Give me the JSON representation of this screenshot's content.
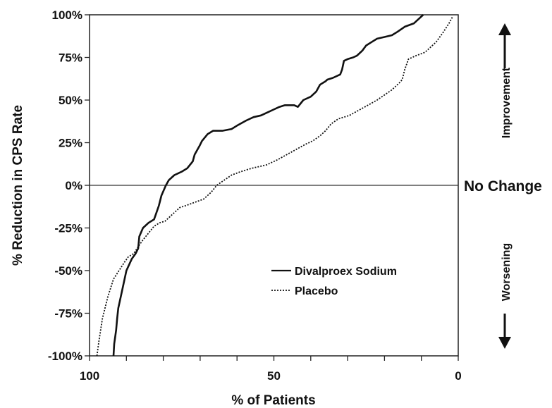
{
  "chart_data": {
    "type": "line",
    "xlabel": "% of Patients",
    "ylabel": "% Reduction in CPS Rate",
    "xlim": [
      100,
      0
    ],
    "ylim": [
      -100,
      100
    ],
    "x_reversed": true,
    "x_ticks": [
      100,
      50,
      0
    ],
    "x_tick_labels": [
      "100",
      "50",
      "0"
    ],
    "y_ticks": [
      -100,
      -75,
      -50,
      -25,
      0,
      25,
      50,
      75,
      100
    ],
    "y_tick_labels": [
      "-100%",
      "-75%",
      "-50%",
      "-25%",
      "0%",
      "25%",
      "50%",
      "75%",
      "100%"
    ],
    "reference_line": {
      "y": 0,
      "label": "No Change"
    },
    "side_labels": {
      "top": "Improvement",
      "bottom": "Worsening"
    },
    "legend_position": "lower-right",
    "series": [
      {
        "name": "Divalproex Sodium",
        "style": "solid",
        "color": "#111111",
        "x": [
          93.5,
          93.3,
          92.8,
          92.5,
          92.2,
          91.8,
          91.0,
          90.0,
          88.5,
          87.5,
          86.8,
          86.5,
          85.5,
          84.0,
          82.5,
          82.0,
          81.2,
          80.5,
          79.3,
          78.5,
          77.0,
          75.0,
          73.5,
          72.0,
          71.5,
          70.2,
          69.5,
          68.0,
          66.5,
          64.0,
          61.5,
          60.0,
          57.5,
          55.5,
          53.5,
          50.5,
          48.5,
          47.0,
          45.5,
          44.5,
          43.5,
          42.0,
          40.0,
          38.5,
          37.5,
          36.0,
          35.5,
          34.0,
          32.0,
          31.5,
          31.0,
          30.0,
          28.5,
          27.5,
          26.0,
          25.0,
          23.5,
          22.0,
          20.0,
          18.0,
          16.5,
          14.5,
          12.0,
          10.5,
          9.5
        ],
        "y": [
          -100,
          -93,
          -85,
          -78,
          -72,
          -68,
          -60,
          -50,
          -43,
          -40,
          -37,
          -30,
          -25,
          -22,
          -20,
          -17,
          -12,
          -6,
          0,
          3,
          6,
          8,
          10,
          14,
          18,
          23,
          26,
          30,
          32,
          32,
          33,
          35,
          38,
          40,
          41,
          44,
          46,
          47,
          47,
          47,
          46,
          50,
          52,
          55,
          59,
          61,
          62,
          63,
          65,
          68,
          73,
          74,
          75,
          76,
          79,
          82,
          84,
          86,
          87,
          88,
          90,
          93,
          95,
          98,
          100
        ]
      },
      {
        "name": "Placebo",
        "style": "dotted",
        "color": "#111111",
        "x": [
          98.0,
          97.5,
          96.5,
          95.0,
          93.5,
          92.0,
          90.5,
          89.5,
          88.0,
          86.5,
          85.5,
          84.0,
          82.5,
          81.0,
          79.5,
          77.5,
          75.5,
          74.0,
          71.5,
          69.0,
          67.0,
          65.5,
          63.5,
          61.5,
          59.0,
          56.0,
          52.0,
          49.0,
          46.5,
          44.0,
          41.5,
          39.5,
          37.5,
          36.0,
          34.5,
          32.5,
          29.5,
          27.0,
          24.5,
          22.0,
          20.0,
          18.0,
          16.5,
          16.0,
          15.2,
          14.5,
          13.5,
          11.5,
          9.0,
          6.0,
          4.0,
          2.5,
          1.5
        ],
        "y": [
          -100,
          -92,
          -78,
          -65,
          -55,
          -50,
          -45,
          -42,
          -40,
          -35,
          -32,
          -28,
          -24,
          -22,
          -21,
          -17,
          -13,
          -12,
          -10,
          -8,
          -4,
          0,
          3,
          6,
          8,
          10,
          12,
          15,
          18,
          21,
          24,
          26,
          29,
          32,
          36,
          39,
          41,
          44,
          47,
          50,
          53,
          56,
          59,
          60,
          62,
          68,
          74,
          76,
          78,
          84,
          90,
          95,
          99
        ]
      }
    ]
  }
}
